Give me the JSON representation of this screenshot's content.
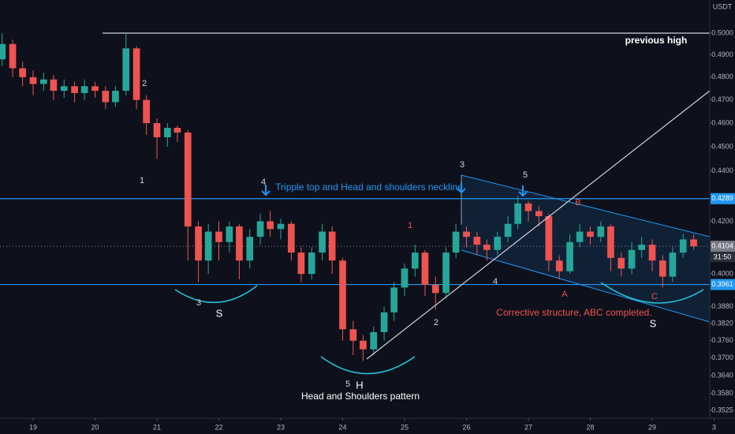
{
  "chart_data": {
    "type": "candlestick",
    "currency": "USDT",
    "log_scale": true,
    "up_color": "#26a69a",
    "down_color": "#ef5350",
    "x": [
      18.5,
      18.67,
      18.83,
      19,
      19.17,
      19.33,
      19.5,
      19.67,
      19.83,
      20,
      20.17,
      20.33,
      20.5,
      20.67,
      20.83,
      21,
      21.17,
      21.33,
      21.5,
      21.67,
      21.83,
      22,
      22.17,
      22.33,
      22.5,
      22.67,
      22.83,
      23,
      23.17,
      23.33,
      23.5,
      23.67,
      23.83,
      24,
      24.17,
      24.33,
      24.5,
      24.67,
      24.83,
      25,
      25.17,
      25.33,
      25.5,
      25.67,
      25.83,
      26,
      26.17,
      26.33,
      26.5,
      26.67,
      26.83,
      27,
      27.17,
      27.33,
      27.5,
      27.67,
      27.83,
      28,
      28.17,
      28.33,
      28.5,
      28.67,
      28.83,
      29,
      29.17,
      29.33,
      29.5,
      29.67
    ],
    "open": [
      0.488,
      0.495,
      0.484,
      0.48,
      0.477,
      0.479,
      0.474,
      0.476,
      0.473,
      0.476,
      0.474,
      0.469,
      0.474,
      0.493,
      0.47,
      0.46,
      0.454,
      0.458,
      0.456,
      0.418,
      0.405,
      0.416,
      0.412,
      0.418,
      0.405,
      0.414,
      0.42,
      0.417,
      0.419,
      0.408,
      0.4,
      0.408,
      0.416,
      0.405,
      0.38,
      0.376,
      0.373,
      0.379,
      0.386,
      0.395,
      0.402,
      0.408,
      0.396,
      0.393,
      0.408,
      0.416,
      0.414,
      0.411,
      0.409,
      0.414,
      0.419,
      0.427,
      0.424,
      0.422,
      0.405,
      0.401,
      0.412,
      0.416,
      0.414,
      0.418,
      0.406,
      0.402,
      0.409,
      0.411,
      0.405,
      0.399,
      0.408,
      0.413
    ],
    "high": [
      0.5,
      0.497,
      0.487,
      0.483,
      0.482,
      0.481,
      0.479,
      0.478,
      0.479,
      0.478,
      0.476,
      0.476,
      0.5,
      0.494,
      0.472,
      0.462,
      0.46,
      0.459,
      0.457,
      0.42,
      0.419,
      0.42,
      0.42,
      0.419,
      0.417,
      0.423,
      0.424,
      0.421,
      0.42,
      0.41,
      0.41,
      0.419,
      0.418,
      0.406,
      0.383,
      0.378,
      0.381,
      0.388,
      0.397,
      0.404,
      0.411,
      0.409,
      0.399,
      0.41,
      0.419,
      0.418,
      0.416,
      0.413,
      0.416,
      0.422,
      0.43,
      0.428,
      0.426,
      0.423,
      0.407,
      0.415,
      0.419,
      0.418,
      0.42,
      0.419,
      0.408,
      0.412,
      0.414,
      0.413,
      0.407,
      0.41,
      0.415,
      0.415
    ],
    "low": [
      0.485,
      0.48,
      0.476,
      0.472,
      0.474,
      0.47,
      0.471,
      0.469,
      0.47,
      0.471,
      0.466,
      0.467,
      0.472,
      0.466,
      0.455,
      0.445,
      0.45,
      0.452,
      0.405,
      0.397,
      0.4,
      0.405,
      0.408,
      0.398,
      0.402,
      0.411,
      0.414,
      0.413,
      0.405,
      0.397,
      0.398,
      0.405,
      0.4,
      0.376,
      0.371,
      0.369,
      0.371,
      0.376,
      0.383,
      0.392,
      0.399,
      0.392,
      0.387,
      0.391,
      0.406,
      0.41,
      0.407,
      0.405,
      0.407,
      0.412,
      0.417,
      0.42,
      0.418,
      0.401,
      0.398,
      0.4,
      0.41,
      0.411,
      0.412,
      0.401,
      0.399,
      0.4,
      0.406,
      0.401,
      0.395,
      0.397,
      0.406,
      0.409
    ],
    "close": [
      0.495,
      0.484,
      0.48,
      0.477,
      0.479,
      0.474,
      0.476,
      0.473,
      0.476,
      0.474,
      0.469,
      0.474,
      0.493,
      0.47,
      0.46,
      0.454,
      0.458,
      0.456,
      0.418,
      0.405,
      0.416,
      0.412,
      0.418,
      0.405,
      0.414,
      0.42,
      0.417,
      0.419,
      0.408,
      0.4,
      0.408,
      0.416,
      0.405,
      0.38,
      0.376,
      0.373,
      0.379,
      0.386,
      0.395,
      0.402,
      0.408,
      0.396,
      0.393,
      0.408,
      0.416,
      0.414,
      0.411,
      0.409,
      0.414,
      0.419,
      0.427,
      0.424,
      0.422,
      0.405,
      0.401,
      0.412,
      0.416,
      0.414,
      0.418,
      0.406,
      0.402,
      0.409,
      0.411,
      0.405,
      0.399,
      0.408,
      0.413,
      0.4104
    ],
    "xlim": [
      18.465,
      29.93
    ],
    "xticks": [
      19,
      20,
      21,
      22,
      23,
      24,
      25,
      26,
      27,
      28,
      29,
      {
        "value": 30,
        "label": "3"
      }
    ],
    "ylim": [
      0.3479,
      0.5156
    ],
    "yticks": [
      {
        "value": 0.5,
        "label": "0.5000"
      },
      {
        "value": 0.49,
        "label": "0.4900"
      },
      {
        "value": 0.48,
        "label": "0.4800"
      },
      {
        "value": 0.47,
        "label": "0.4700"
      },
      {
        "value": 0.46,
        "label": "0.4600"
      },
      {
        "value": 0.45,
        "label": "0.4500"
      },
      {
        "value": 0.44,
        "label": "0.4400"
      },
      {
        "value": 0.42,
        "label": "0.4200"
      },
      {
        "value": 0.4,
        "label": "0.4000"
      },
      {
        "value": 0.388,
        "label": "0.3880"
      },
      {
        "value": 0.382,
        "label": "0.3820"
      },
      {
        "value": 0.376,
        "label": "0.3760"
      },
      {
        "value": 0.37,
        "label": "0.3700"
      },
      {
        "value": 0.364,
        "label": "0.3640"
      },
      {
        "value": 0.358,
        "label": "0.3580"
      },
      {
        "value": 0.3525,
        "label": "0.3525"
      }
    ],
    "price_levels": [
      {
        "value": 0.4289,
        "label": "0.4289",
        "color": "#2196f3"
      },
      {
        "value": 0.4104,
        "label": "0.4104",
        "color": "#787b86"
      },
      {
        "value": 0.3961,
        "label": "0.3961",
        "color": "#2196f3"
      }
    ],
    "countdown": "31:50",
    "annotations": [
      "previous high",
      "2",
      "1",
      "4",
      "3",
      "S",
      "5",
      "H",
      "Head and Shoulders pattern",
      "Tripple top and Head and shoulders neckline",
      "1",
      "2",
      "3",
      "4",
      "5",
      "B",
      "A",
      "C",
      "Corrective structure, ABC completed.",
      "S"
    ]
  }
}
